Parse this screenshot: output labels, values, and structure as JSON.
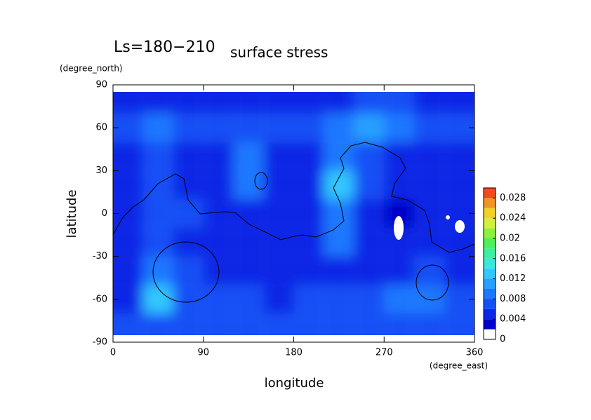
{
  "chart_data": {
    "type": "contour",
    "title": "Ls=180−210",
    "subtitle": "surface stress",
    "x_label": "longitude",
    "y_label": "latitude",
    "x_unit": "(degree_east)",
    "y_unit": "(degree_north)",
    "x": [
      15,
      45,
      75,
      105,
      135,
      165,
      195,
      225,
      255,
      285,
      315,
      345
    ],
    "y": [
      80,
      60,
      40,
      20,
      0,
      -20,
      -40,
      -60,
      -80
    ],
    "z": [
      [
        0.005,
        0.005,
        0.005,
        0.005,
        0.005,
        0.005,
        0.005,
        0.005,
        0.006,
        0.006,
        0.005,
        0.005
      ],
      [
        0.007,
        0.008,
        0.007,
        0.006,
        0.006,
        0.006,
        0.007,
        0.008,
        0.01,
        0.008,
        0.007,
        0.007
      ],
      [
        0.005,
        0.006,
        0.005,
        0.004,
        0.008,
        0.005,
        0.004,
        0.009,
        0.006,
        0.004,
        0.005,
        0.005
      ],
      [
        0.004,
        0.006,
        0.005,
        0.004,
        0.009,
        0.004,
        0.005,
        0.012,
        0.006,
        0.005,
        0.004,
        0.005
      ],
      [
        0.004,
        0.007,
        0.006,
        0.004,
        0.005,
        0.004,
        0.004,
        0.009,
        0.005,
        0.002,
        0.004,
        0.004
      ],
      [
        0.004,
        0.006,
        0.005,
        0.004,
        0.004,
        0.004,
        0.004,
        0.008,
        0.005,
        0.004,
        0.004,
        0.004
      ],
      [
        0.004,
        0.009,
        0.007,
        0.005,
        0.004,
        0.004,
        0.004,
        0.005,
        0.005,
        0.005,
        0.006,
        0.005
      ],
      [
        0.005,
        0.013,
        0.007,
        0.006,
        0.006,
        0.005,
        0.006,
        0.006,
        0.007,
        0.009,
        0.008,
        0.006
      ],
      [
        0.006,
        0.006,
        0.006,
        0.006,
        0.006,
        0.006,
        0.006,
        0.006,
        0.006,
        0.006,
        0.006,
        0.006
      ]
    ],
    "xlim": [
      0,
      360
    ],
    "ylim": [
      -90,
      90
    ],
    "xticks": [
      0,
      90,
      180,
      270,
      360
    ],
    "yticks": [
      -90,
      -60,
      -30,
      0,
      30,
      60,
      90
    ],
    "clim": [
      0,
      0.03
    ],
    "levels": [
      0,
      0.002,
      0.004,
      0.006,
      0.008,
      0.01,
      0.012,
      0.014,
      0.016,
      0.018,
      0.02,
      0.022,
      0.024,
      0.026,
      0.028,
      0.03
    ],
    "colors": [
      "#ffffff",
      "#0000c8",
      "#0a28e6",
      "#1450f5",
      "#1e78ff",
      "#28a0ff",
      "#32c8ff",
      "#3ce6dc",
      "#3cf0a0",
      "#50f05a",
      "#8cf03c",
      "#d2f03c",
      "#f0d228",
      "#f09628",
      "#f04b1e"
    ],
    "cticks": [
      0,
      0.004,
      0.008,
      0.012,
      0.016,
      0.02,
      0.024,
      0.028
    ]
  }
}
